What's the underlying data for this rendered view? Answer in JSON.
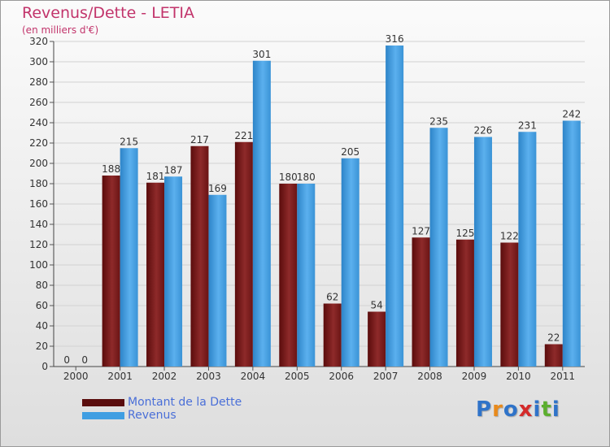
{
  "title": "Revenus/Dette - LETIA",
  "subtitle": "(en milliers d'€)",
  "colors": {
    "dette": "#7a1a1a",
    "revenus": "#3f9ee2",
    "title": "#c2346b",
    "legend_text": "#4a6fd8"
  },
  "logo": {
    "text": "Proxiti",
    "letters": [
      "P",
      "r",
      "o",
      "x",
      "i",
      "t",
      "i"
    ],
    "letter_colors": [
      "#2f73c9",
      "#e88a1c",
      "#2f73c9",
      "#d42a2a",
      "#2f73c9",
      "#5cae2e",
      "#2f73c9"
    ]
  },
  "chart_data": {
    "type": "bar",
    "title": "Revenus/Dette - LETIA",
    "subtitle": "(en milliers d'€)",
    "categories": [
      "2000",
      "2001",
      "2002",
      "2003",
      "2004",
      "2005",
      "2006",
      "2007",
      "2008",
      "2009",
      "2010",
      "2011"
    ],
    "series": [
      {
        "name": "Montant de la Dette",
        "color": "#7a1a1a",
        "values": [
          0,
          188,
          181,
          217,
          221,
          180,
          62,
          54,
          127,
          125,
          122,
          22
        ]
      },
      {
        "name": "Revenus",
        "color": "#3f9ee2",
        "values": [
          0,
          215,
          187,
          169,
          301,
          180,
          205,
          316,
          235,
          226,
          231,
          242
        ]
      }
    ],
    "ylim": [
      0,
      320
    ],
    "yticks": [
      0,
      20,
      40,
      60,
      80,
      100,
      120,
      140,
      160,
      180,
      200,
      220,
      240,
      260,
      280,
      300,
      320
    ],
    "grid": true,
    "legend": "bottom-left"
  }
}
